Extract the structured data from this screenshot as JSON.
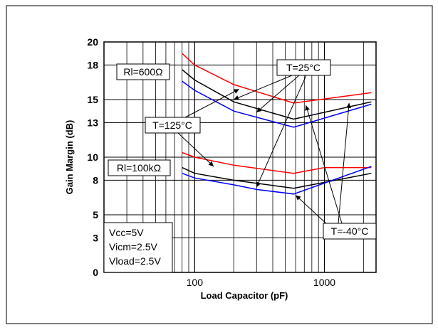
{
  "chart_data": {
    "type": "line",
    "xlabel": "Load Capacitor (pF)",
    "ylabel": "Gain Margin (dB)",
    "xscale": "log",
    "xlim": [
      20,
      2500
    ],
    "ylim": [
      0,
      20
    ],
    "x_tick_labels": [
      "100",
      "1000"
    ],
    "y_tick_labels": [
      "0",
      "3",
      "5",
      "8",
      "10",
      "13",
      "15",
      "18",
      "20"
    ],
    "grid": "on (log minor vertical, major horizontal)",
    "series": [
      {
        "group": "Rl=600Ω",
        "condition": "T=-40°C",
        "color": "#ff0000",
        "x": [
          80,
          100,
          200,
          580,
          2300
        ],
        "y": [
          19.0,
          18.0,
          16.3,
          14.7,
          15.6
        ]
      },
      {
        "group": "Rl=600Ω",
        "condition": "T=25°C",
        "color": "#000000",
        "x": [
          80,
          100,
          200,
          580,
          2300
        ],
        "y": [
          17.6,
          16.7,
          14.8,
          13.3,
          14.8
        ]
      },
      {
        "group": "Rl=600Ω",
        "condition": "T=125°C",
        "color": "#0000ff",
        "x": [
          80,
          100,
          200,
          580,
          2300
        ],
        "y": [
          16.6,
          15.8,
          14.0,
          12.6,
          14.6
        ]
      },
      {
        "group": "Rl=100kΩ",
        "condition": "T=-40°C",
        "color": "#ff0000",
        "x": [
          80,
          100,
          200,
          580,
          1000,
          2300
        ],
        "y": [
          10.4,
          10.0,
          9.3,
          8.6,
          9.1,
          9.1
        ]
      },
      {
        "group": "Rl=100kΩ",
        "condition": "T=25°C",
        "color": "#000000",
        "x": [
          80,
          100,
          200,
          580,
          2300
        ],
        "y": [
          9.1,
          8.6,
          8.0,
          7.3,
          8.6
        ]
      },
      {
        "group": "Rl=100kΩ",
        "condition": "T=125°C",
        "color": "#0000ff",
        "x": [
          80,
          100,
          200,
          300,
          580,
          2300
        ],
        "y": [
          8.6,
          8.2,
          7.6,
          7.2,
          6.8,
          9.2
        ]
      }
    ],
    "annotations": [
      "Rl=600Ω",
      "Rl=100kΩ",
      "T=25°C",
      "T=125°C",
      "T=-40°C",
      "Vcc=5V",
      "Vicm=2.5V",
      "Vload=2.5V"
    ]
  }
}
